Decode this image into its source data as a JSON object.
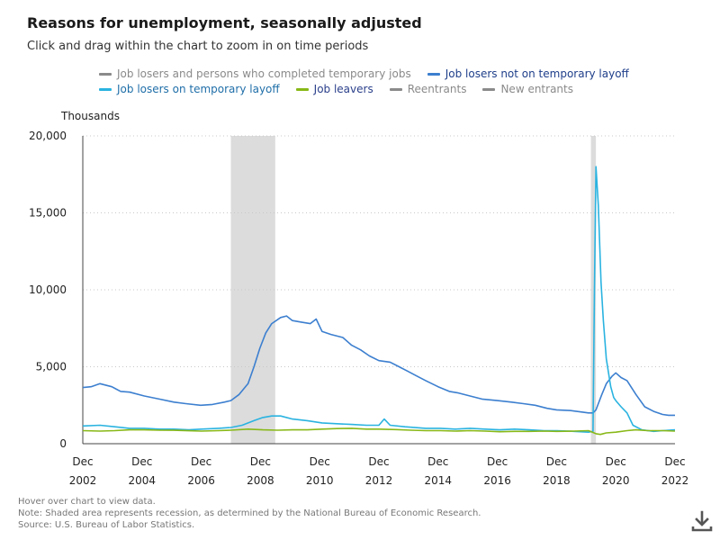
{
  "header": {
    "title": "Reasons for unemployment, seasonally adjusted",
    "subtitle": "Click and drag within the chart to zoom in on time periods"
  },
  "legend": {
    "rows": [
      [
        {
          "label": "Job losers and persons who completed temporary jobs",
          "color": "#8a8a8a",
          "text_color": "#8a8a8a"
        },
        {
          "label": "Job losers not on temporary layoff",
          "color": "#3c7fcf",
          "text_color": "#1f3f8a"
        }
      ],
      [
        {
          "label": "Job losers on temporary layoff",
          "color": "#2ab3e0",
          "text_color": "#1f6ea8"
        },
        {
          "label": "Job leavers",
          "color": "#88b817",
          "text_color": "#2a3f8a"
        },
        {
          "label": "Reentrants",
          "color": "#8a8a8a",
          "text_color": "#8a8a8a"
        },
        {
          "label": "New entrants",
          "color": "#8a8a8a",
          "text_color": "#8a8a8a"
        }
      ]
    ]
  },
  "chart_data": {
    "type": "line",
    "ylabel": "Thousands",
    "ylim": [
      0,
      20000
    ],
    "yticks": [
      0,
      5000,
      10000,
      15000,
      20000
    ],
    "ytick_labels": [
      "0",
      "5,000",
      "10,000",
      "15,000",
      "20,000"
    ],
    "xlim": [
      2002.92,
      2022.92
    ],
    "xticks": [
      {
        "x": 2002.92,
        "top": "Dec",
        "bottom": "2002"
      },
      {
        "x": 2004.92,
        "top": "Dec",
        "bottom": "2004"
      },
      {
        "x": 2006.92,
        "top": "Dec",
        "bottom": "2006"
      },
      {
        "x": 2008.92,
        "top": "Dec",
        "bottom": "2008"
      },
      {
        "x": 2010.92,
        "top": "Dec",
        "bottom": "2010"
      },
      {
        "x": 2012.92,
        "top": "Dec",
        "bottom": "2012"
      },
      {
        "x": 2014.92,
        "top": "Dec",
        "bottom": "2014"
      },
      {
        "x": 2016.92,
        "top": "Dec",
        "bottom": "2016"
      },
      {
        "x": 2018.92,
        "top": "Dec",
        "bottom": "2018"
      },
      {
        "x": 2020.92,
        "top": "Dec",
        "bottom": "2020"
      },
      {
        "x": 2022.92,
        "top": "Dec",
        "bottom": "2022"
      }
    ],
    "grid": "horizontal-dotted",
    "recessions": [
      [
        2007.92,
        2009.42
      ],
      [
        2020.08,
        2020.25
      ]
    ],
    "series": [
      {
        "name": "Job losers not on temporary layoff",
        "color": "#3c7fcf",
        "points": [
          [
            2002.92,
            3650
          ],
          [
            2003.2,
            3700
          ],
          [
            2003.5,
            3900
          ],
          [
            2003.9,
            3700
          ],
          [
            2004.2,
            3400
          ],
          [
            2004.5,
            3350
          ],
          [
            2005.0,
            3100
          ],
          [
            2005.5,
            2900
          ],
          [
            2006.0,
            2700
          ],
          [
            2006.4,
            2600
          ],
          [
            2006.9,
            2500
          ],
          [
            2007.3,
            2550
          ],
          [
            2007.7,
            2700
          ],
          [
            2007.92,
            2800
          ],
          [
            2008.2,
            3200
          ],
          [
            2008.5,
            3900
          ],
          [
            2008.7,
            5000
          ],
          [
            2008.9,
            6200
          ],
          [
            2009.1,
            7200
          ],
          [
            2009.3,
            7800
          ],
          [
            2009.6,
            8200
          ],
          [
            2009.8,
            8300
          ],
          [
            2010.0,
            8000
          ],
          [
            2010.3,
            7900
          ],
          [
            2010.6,
            7800
          ],
          [
            2010.8,
            8100
          ],
          [
            2011.0,
            7300
          ],
          [
            2011.3,
            7100
          ],
          [
            2011.7,
            6900
          ],
          [
            2012.0,
            6400
          ],
          [
            2012.3,
            6100
          ],
          [
            2012.6,
            5700
          ],
          [
            2012.92,
            5400
          ],
          [
            2013.3,
            5300
          ],
          [
            2013.6,
            5000
          ],
          [
            2013.9,
            4700
          ],
          [
            2014.2,
            4400
          ],
          [
            2014.5,
            4100
          ],
          [
            2014.92,
            3700
          ],
          [
            2015.3,
            3400
          ],
          [
            2015.6,
            3300
          ],
          [
            2016.0,
            3100
          ],
          [
            2016.4,
            2900
          ],
          [
            2016.92,
            2800
          ],
          [
            2017.4,
            2700
          ],
          [
            2017.8,
            2600
          ],
          [
            2018.2,
            2500
          ],
          [
            2018.6,
            2300
          ],
          [
            2018.92,
            2200
          ],
          [
            2019.4,
            2150
          ],
          [
            2019.8,
            2050
          ],
          [
            2020.0,
            2000
          ],
          [
            2020.15,
            2000
          ],
          [
            2020.25,
            2200
          ],
          [
            2020.45,
            3200
          ],
          [
            2020.6,
            3900
          ],
          [
            2020.8,
            4400
          ],
          [
            2020.92,
            4600
          ],
          [
            2021.1,
            4300
          ],
          [
            2021.3,
            4100
          ],
          [
            2021.6,
            3200
          ],
          [
            2021.9,
            2400
          ],
          [
            2022.2,
            2100
          ],
          [
            2022.5,
            1900
          ],
          [
            2022.7,
            1850
          ],
          [
            2022.92,
            1850
          ]
        ]
      },
      {
        "name": "Job losers on temporary layoff",
        "color": "#2ab3e0",
        "points": [
          [
            2002.92,
            1150
          ],
          [
            2003.5,
            1200
          ],
          [
            2004.0,
            1100
          ],
          [
            2004.5,
            1000
          ],
          [
            2005.0,
            1000
          ],
          [
            2005.5,
            950
          ],
          [
            2006.0,
            950
          ],
          [
            2006.5,
            900
          ],
          [
            2006.92,
            950
          ],
          [
            2007.5,
            1000
          ],
          [
            2007.92,
            1050
          ],
          [
            2008.3,
            1200
          ],
          [
            2008.7,
            1500
          ],
          [
            2009.0,
            1700
          ],
          [
            2009.3,
            1800
          ],
          [
            2009.6,
            1800
          ],
          [
            2010.0,
            1600
          ],
          [
            2010.5,
            1500
          ],
          [
            2011.0,
            1350
          ],
          [
            2011.5,
            1300
          ],
          [
            2012.0,
            1250
          ],
          [
            2012.5,
            1200
          ],
          [
            2012.92,
            1200
          ],
          [
            2013.1,
            1600
          ],
          [
            2013.3,
            1200
          ],
          [
            2013.8,
            1100
          ],
          [
            2014.5,
            1000
          ],
          [
            2015.0,
            1000
          ],
          [
            2015.5,
            950
          ],
          [
            2016.0,
            1000
          ],
          [
            2016.5,
            950
          ],
          [
            2017.0,
            900
          ],
          [
            2017.5,
            950
          ],
          [
            2018.0,
            900
          ],
          [
            2018.5,
            850
          ],
          [
            2018.92,
            850
          ],
          [
            2019.5,
            800
          ],
          [
            2020.0,
            750
          ],
          [
            2020.15,
            800
          ],
          [
            2020.2,
            10000
          ],
          [
            2020.25,
            18000
          ],
          [
            2020.33,
            15500
          ],
          [
            2020.42,
            10500
          ],
          [
            2020.5,
            8000
          ],
          [
            2020.6,
            5500
          ],
          [
            2020.75,
            3700
          ],
          [
            2020.85,
            3000
          ],
          [
            2020.92,
            2800
          ],
          [
            2021.1,
            2400
          ],
          [
            2021.3,
            2000
          ],
          [
            2021.5,
            1200
          ],
          [
            2021.8,
            900
          ],
          [
            2022.2,
            800
          ],
          [
            2022.5,
            850
          ],
          [
            2022.92,
            900
          ]
        ]
      },
      {
        "name": "Job leavers",
        "color": "#88b817",
        "points": [
          [
            2002.92,
            850
          ],
          [
            2003.5,
            820
          ],
          [
            2004.0,
            850
          ],
          [
            2004.5,
            900
          ],
          [
            2005.0,
            900
          ],
          [
            2005.5,
            880
          ],
          [
            2006.0,
            870
          ],
          [
            2006.5,
            840
          ],
          [
            2006.92,
            820
          ],
          [
            2007.5,
            850
          ],
          [
            2007.92,
            880
          ],
          [
            2008.5,
            950
          ],
          [
            2009.0,
            900
          ],
          [
            2009.5,
            880
          ],
          [
            2010.0,
            900
          ],
          [
            2010.5,
            900
          ],
          [
            2011.0,
            950
          ],
          [
            2011.5,
            980
          ],
          [
            2012.0,
            1000
          ],
          [
            2012.5,
            950
          ],
          [
            2012.92,
            950
          ],
          [
            2013.5,
            920
          ],
          [
            2014.0,
            880
          ],
          [
            2014.5,
            850
          ],
          [
            2015.0,
            850
          ],
          [
            2015.5,
            820
          ],
          [
            2016.0,
            850
          ],
          [
            2016.5,
            820
          ],
          [
            2017.0,
            780
          ],
          [
            2017.5,
            800
          ],
          [
            2018.0,
            800
          ],
          [
            2018.5,
            820
          ],
          [
            2018.92,
            800
          ],
          [
            2019.5,
            820
          ],
          [
            2020.0,
            850
          ],
          [
            2020.25,
            650
          ],
          [
            2020.4,
            600
          ],
          [
            2020.6,
            700
          ],
          [
            2020.92,
            750
          ],
          [
            2021.3,
            850
          ],
          [
            2021.6,
            900
          ],
          [
            2022.0,
            850
          ],
          [
            2022.5,
            850
          ],
          [
            2022.92,
            820
          ]
        ]
      }
    ]
  },
  "notes": {
    "line1": "Hover over chart to view data.",
    "line2": "Note: Shaded area represents recession, as determined by the National Bureau of Economic Research.",
    "line3": "Source: U.S. Bureau of Labor Statistics."
  },
  "download": {
    "icon": "download-icon",
    "color": "#555555"
  }
}
